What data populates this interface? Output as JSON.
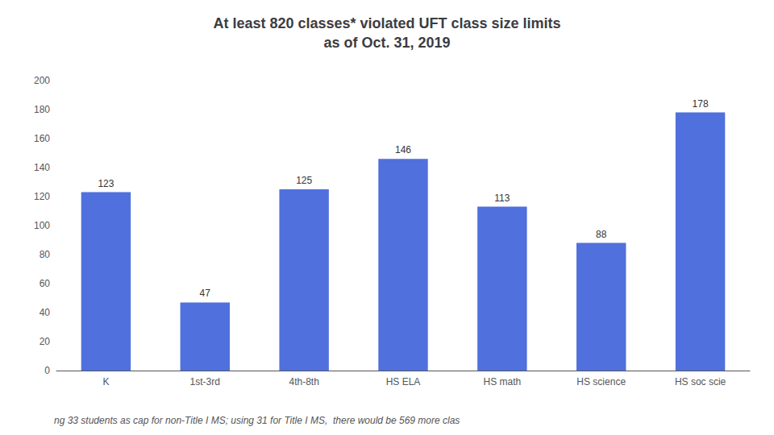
{
  "chart_data": {
    "type": "bar",
    "title": "At least 820 classes* violated UFT class size limits\nas of Oct. 31, 2019",
    "categories": [
      "K",
      "1st-3rd",
      "4th-8th",
      "HS ELA",
      "HS math",
      "HS science",
      "HS soc scie"
    ],
    "values": [
      123,
      47,
      125,
      146,
      113,
      88,
      178
    ],
    "ylim": [
      0,
      200
    ],
    "yticks": [
      0,
      20,
      40,
      60,
      80,
      100,
      120,
      140,
      160,
      180,
      200
    ],
    "grid": false,
    "data_labels": true,
    "footnote": "ng 33 students as cap for non-Title I MS; using 31 for Title I MS,  there would be 569 more clas"
  }
}
